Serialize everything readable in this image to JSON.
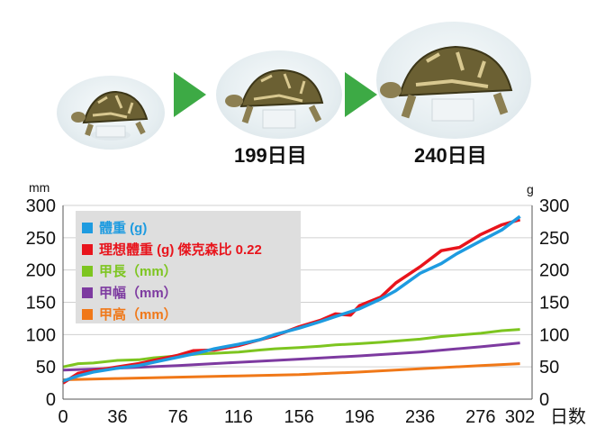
{
  "photos": [
    {
      "name": "turtle-photo-start",
      "caption": ""
    },
    {
      "name": "turtle-photo-day-199",
      "caption": "199日目"
    },
    {
      "name": "turtle-photo-day-240",
      "caption": "240日目"
    }
  ],
  "icons": [
    "next-arrow-icon",
    "next-arrow-icon"
  ],
  "colors": {
    "weight": "#1e9be0",
    "ideal_weight": "#e8141c",
    "shell_length": "#7dc520",
    "shell_width": "#7d3aa0",
    "shell_height": "#f07818",
    "arrow": "#3daa45",
    "legend_bg": "#dedede",
    "grid": "#d0d0d0"
  },
  "chart_data": {
    "type": "line",
    "x_label": "日数",
    "y_left_unit": "mm",
    "y_right_unit": "g",
    "xlim": [
      0,
      310
    ],
    "ylim": [
      0,
      300
    ],
    "x_ticks": [
      "0",
      "36",
      "76",
      "116",
      "156",
      "196",
      "236",
      "276",
      "302"
    ],
    "y_ticks": [
      "0",
      "50",
      "100",
      "150",
      "200",
      "250",
      "300"
    ],
    "grid": "horizontal",
    "legend_placement": "top-left",
    "series": [
      {
        "key": "weight",
        "name": "體重 (g)",
        "color": "#1e9be0",
        "x": [
          0,
          10,
          20,
          36,
          50,
          60,
          76,
          90,
          100,
          116,
          130,
          140,
          156,
          170,
          180,
          196,
          210,
          220,
          236,
          250,
          260,
          276,
          290,
          302
        ],
        "y": [
          28,
          36,
          42,
          48,
          52,
          57,
          65,
          72,
          78,
          85,
          92,
          100,
          110,
          120,
          128,
          140,
          155,
          168,
          195,
          210,
          225,
          245,
          262,
          283
        ]
      },
      {
        "key": "ideal_weight",
        "name": "理想體重 (g) 傑克森比 0.22",
        "color": "#e8141c",
        "x": [
          0,
          10,
          20,
          36,
          50,
          60,
          76,
          86,
          100,
          116,
          130,
          140,
          156,
          170,
          180,
          190,
          196,
          210,
          220,
          236,
          250,
          262,
          276,
          290,
          302
        ],
        "y": [
          25,
          40,
          44,
          50,
          55,
          60,
          68,
          75,
          76,
          83,
          92,
          98,
          112,
          122,
          132,
          130,
          145,
          158,
          180,
          205,
          230,
          235,
          255,
          270,
          278
        ]
      },
      {
        "key": "shell_length",
        "name": "甲長（mm）",
        "color": "#7dc520",
        "x": [
          0,
          10,
          20,
          36,
          50,
          60,
          76,
          90,
          100,
          116,
          130,
          140,
          156,
          170,
          180,
          196,
          210,
          220,
          236,
          250,
          260,
          276,
          290,
          302
        ],
        "y": [
          50,
          55,
          56,
          60,
          61,
          64,
          67,
          70,
          71,
          73,
          76,
          78,
          80,
          82,
          84,
          86,
          88,
          90,
          93,
          97,
          99,
          102,
          106,
          108
        ]
      },
      {
        "key": "shell_width",
        "name": "甲幅（mm）",
        "color": "#7d3aa0",
        "x": [
          0,
          36,
          76,
          116,
          156,
          196,
          236,
          276,
          302
        ],
        "y": [
          45,
          48,
          52,
          57,
          62,
          67,
          73,
          81,
          87
        ]
      },
      {
        "key": "shell_height",
        "name": "甲高（mm）",
        "color": "#f07818",
        "x": [
          0,
          36,
          76,
          116,
          156,
          196,
          236,
          276,
          302
        ],
        "y": [
          30,
          32,
          34,
          36,
          38,
          42,
          47,
          52,
          55
        ]
      }
    ]
  }
}
